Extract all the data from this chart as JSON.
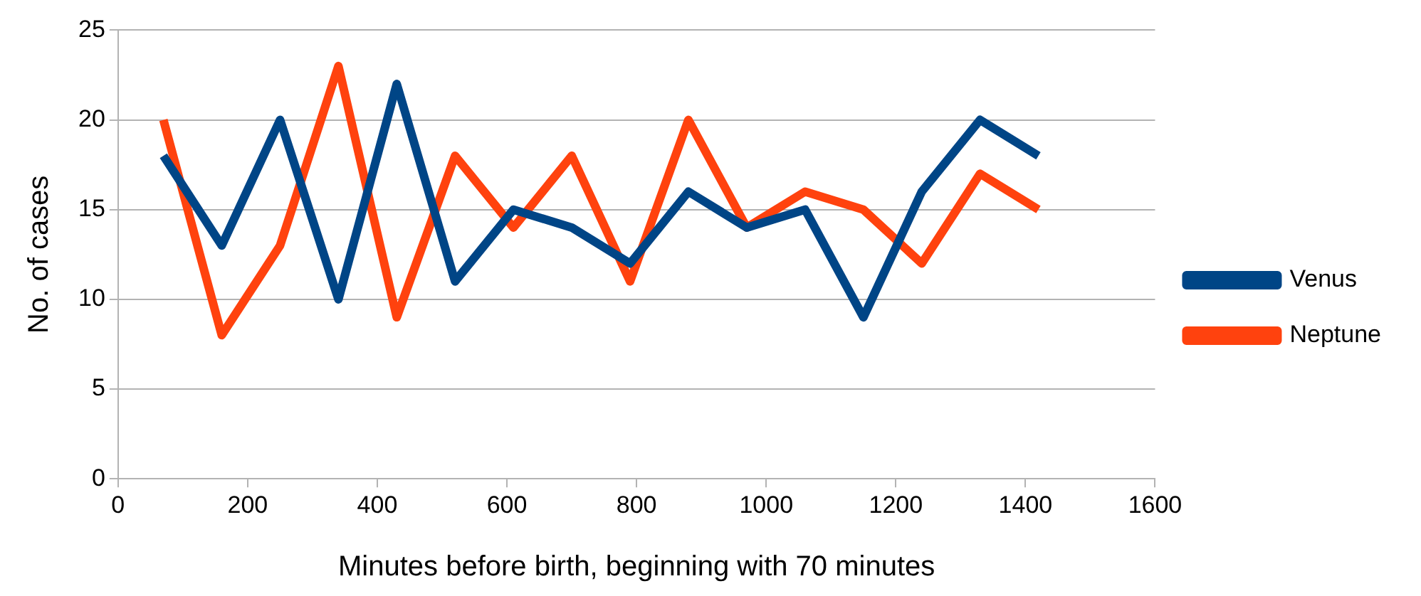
{
  "chart_data": {
    "type": "line",
    "xlabel": "Minutes before birth, beginning with 70 minutes",
    "ylabel": "No. of cases",
    "x": [
      70,
      160,
      250,
      340,
      430,
      520,
      610,
      700,
      790,
      880,
      970,
      1060,
      1150,
      1240,
      1330,
      1420
    ],
    "series": [
      {
        "name": "Venus",
        "color": "#004586",
        "values": [
          18,
          13,
          20,
          10,
          22,
          11,
          15,
          14,
          12,
          16,
          14,
          15,
          9,
          16,
          20,
          18
        ]
      },
      {
        "name": "Neptune",
        "color": "#ff420e",
        "values": [
          20,
          8,
          13,
          23,
          9,
          18,
          14,
          18,
          11,
          20,
          14,
          16,
          15,
          12,
          17,
          15
        ]
      }
    ],
    "xlim": [
      0,
      1600
    ],
    "xticks": [
      0,
      200,
      400,
      600,
      800,
      1000,
      1200,
      1400,
      1600
    ],
    "ylim": [
      0,
      25
    ],
    "yticks": [
      0,
      5,
      10,
      15,
      20,
      25
    ],
    "grid": "y",
    "legend": "right",
    "marker": "none",
    "line_style": "solid"
  }
}
